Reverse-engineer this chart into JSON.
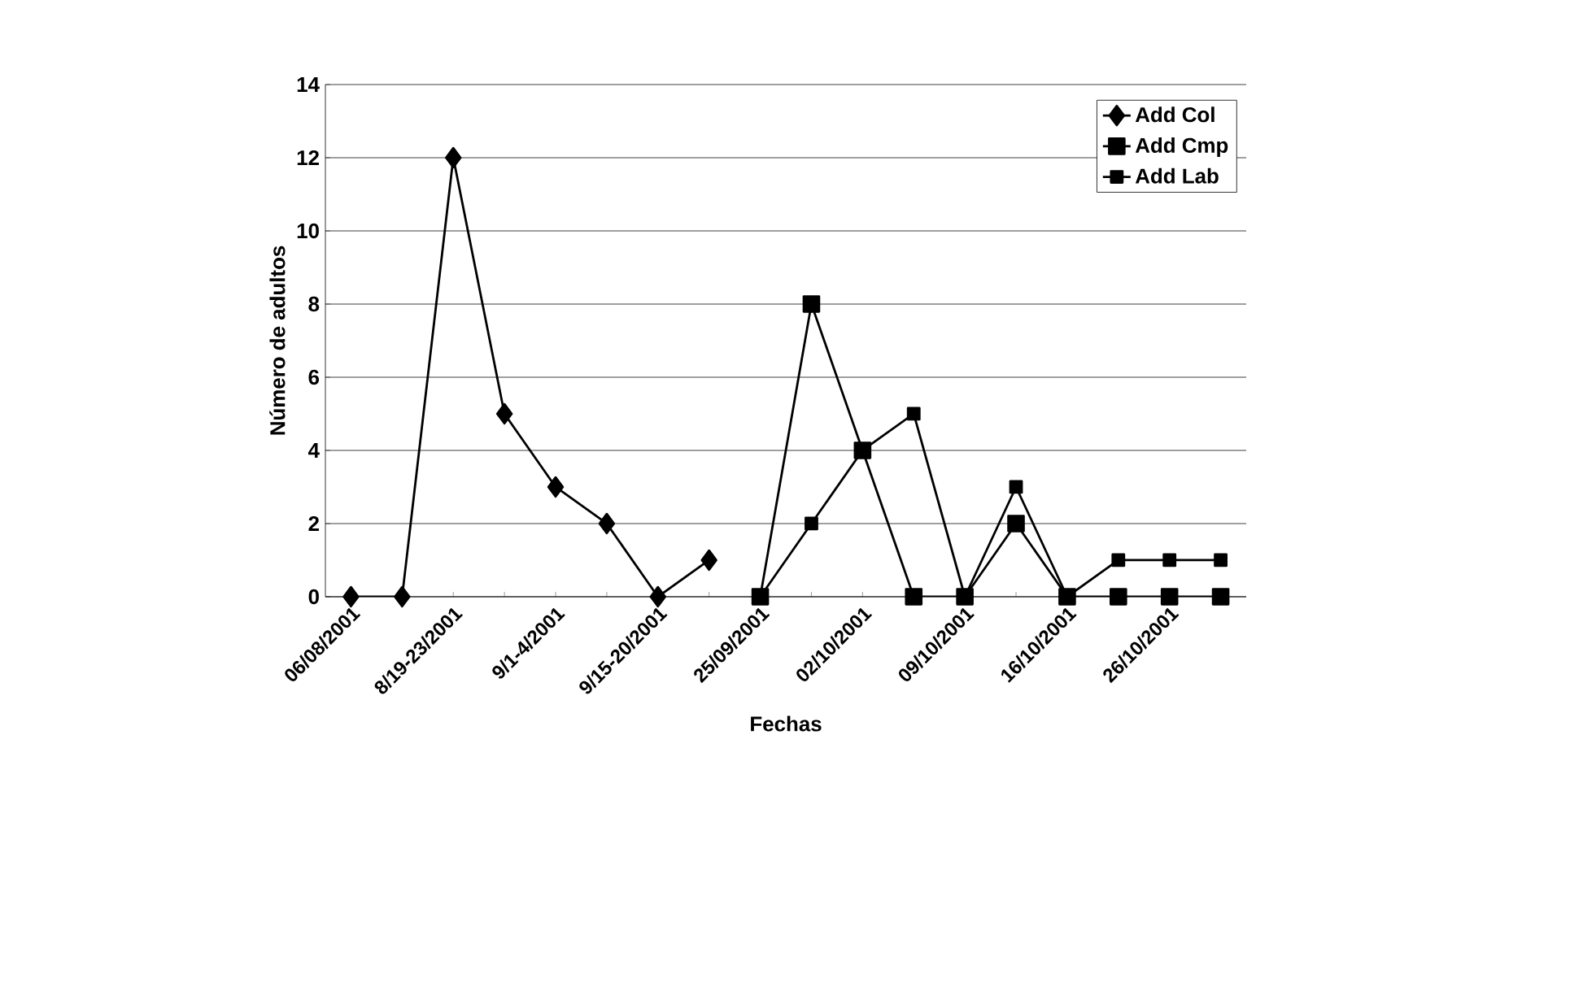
{
  "chart_data": {
    "type": "line",
    "xlabel": "Fechas",
    "ylabel": "Número de adultos",
    "categories": [
      "06/08/2001",
      null,
      "8/19-23/2001",
      null,
      "9/1-4/2001",
      null,
      "9/15-20/2001",
      null,
      "25/09/2001",
      null,
      "02/10/2001",
      null,
      "09/10/2001",
      null,
      "16/10/2001",
      null,
      "26/10/2001",
      null
    ],
    "series": [
      {
        "name": "Add  Col",
        "color": "#000000",
        "marker": "diamond",
        "values": [
          0,
          0,
          12,
          5,
          3,
          2,
          0,
          1,
          null,
          null,
          null,
          null,
          null,
          null,
          null,
          null,
          null,
          null
        ]
      },
      {
        "name": "Add  Cmp",
        "color": "#000000",
        "marker": "square",
        "values": [
          null,
          null,
          null,
          null,
          null,
          null,
          null,
          null,
          0,
          8,
          4,
          0,
          0,
          2,
          0,
          0,
          0,
          0
        ]
      },
      {
        "name": "Add  Lab",
        "color": "#000000",
        "marker": "square",
        "values": [
          null,
          null,
          null,
          null,
          null,
          null,
          null,
          null,
          0,
          2,
          4,
          5,
          0,
          3,
          0,
          1,
          1,
          1
        ]
      }
    ],
    "ylim": [
      0,
      14
    ],
    "yticks": [
      0,
      2,
      4,
      6,
      8,
      10,
      12,
      14
    ],
    "grid": "y",
    "legend": "top right",
    "line_style": "solid"
  }
}
